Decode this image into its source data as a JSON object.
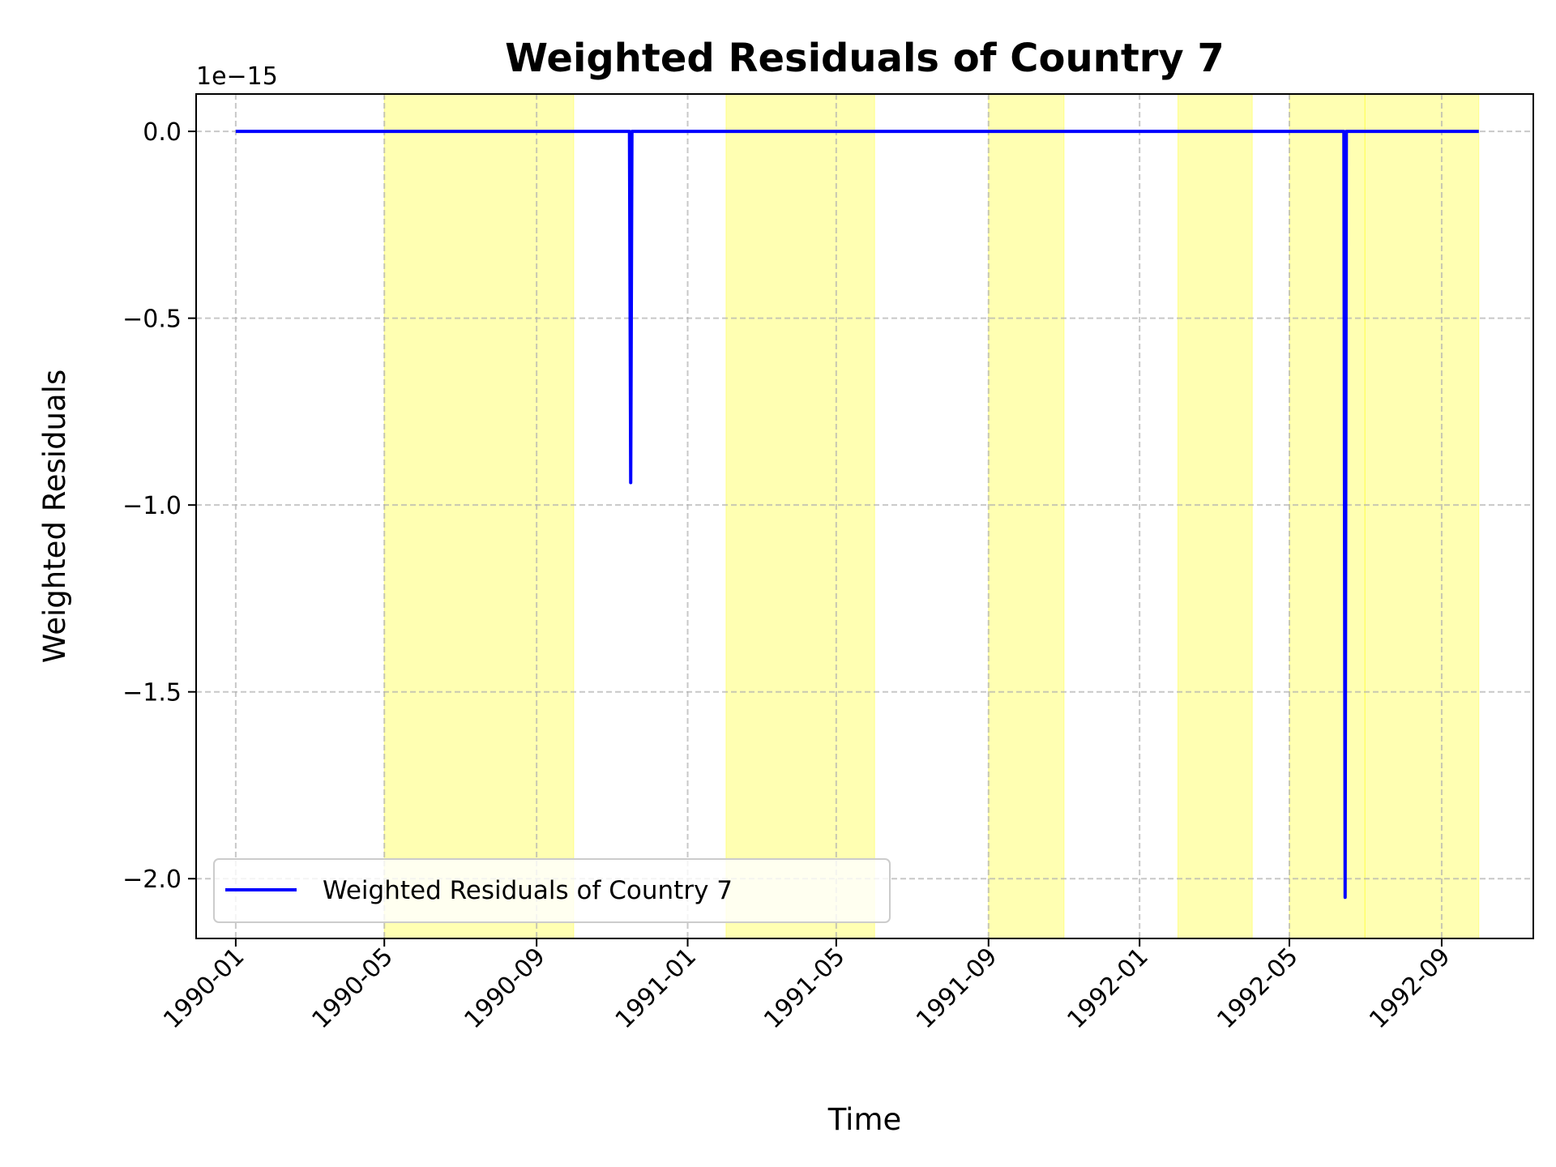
{
  "chart_data": {
    "type": "line",
    "title": "Weighted Residuals of Country 7",
    "xlabel": "Time",
    "ylabel": "Weighted Residuals",
    "y_offset_label": "1e−15",
    "y_scale_exponent": -15,
    "ylim": [
      -2.16,
      0.1
    ],
    "xlim": [
      "1989-11-30",
      "1992-11-14"
    ],
    "grid": true,
    "legend_placement": "lower-left",
    "x_ticks": [
      "1990-01",
      "1990-05",
      "1990-09",
      "1991-01",
      "1991-05",
      "1991-09",
      "1992-01",
      "1992-05",
      "1992-09"
    ],
    "y_ticks": [
      0.0,
      -0.5,
      -1.0,
      -1.5,
      -2.0
    ],
    "y_tick_labels": [
      "0.0",
      "−0.5",
      "−1.0",
      "−1.5",
      "−2.0"
    ],
    "series": [
      {
        "name": "Weighted Residuals of Country 7",
        "color": "#0000ff",
        "x": [
          "1990-01-01",
          "1990-11-15",
          "1990-11-16",
          "1990-11-17",
          "1992-06-14",
          "1992-06-15",
          "1992-06-16",
          "1992-10-01"
        ],
        "y": [
          0.0,
          0.0,
          -0.94,
          0.0,
          0.0,
          -2.05,
          0.0,
          0.0
        ]
      }
    ],
    "highlight_color": "#ffff00",
    "highlight_spans": [
      [
        "1990-05-01",
        "1990-10-01"
      ],
      [
        "1991-02-01",
        "1991-06-01"
      ],
      [
        "1991-09-01",
        "1991-11-01"
      ],
      [
        "1992-02-01",
        "1992-04-01"
      ],
      [
        "1992-05-01",
        "1992-07-01"
      ],
      [
        "1992-07-01",
        "1992-10-01"
      ]
    ]
  }
}
